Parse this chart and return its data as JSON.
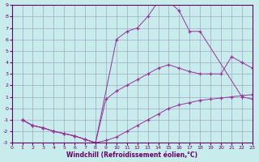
{
  "xlabel": "Windchill (Refroidissement éolien,°C)",
  "bg_color": "#c8ecec",
  "grid_color": "#9999bb",
  "line_color": "#993399",
  "xlim": [
    0,
    23
  ],
  "ylim": [
    -3,
    9
  ],
  "xticks": [
    0,
    1,
    2,
    3,
    4,
    5,
    6,
    7,
    8,
    9,
    10,
    11,
    12,
    13,
    14,
    15,
    16,
    17,
    18,
    19,
    20,
    21,
    22,
    23
  ],
  "yticks": [
    -3,
    -2,
    -1,
    0,
    1,
    2,
    3,
    4,
    5,
    6,
    7,
    8,
    9
  ],
  "series1_x": [
    1,
    2,
    3,
    4,
    5,
    6,
    7,
    8,
    10,
    11,
    12,
    13,
    14,
    15,
    16,
    17,
    18,
    22,
    23
  ],
  "series1_y": [
    -1,
    -1.5,
    -1.7,
    -2.0,
    -2.2,
    -2.4,
    -2.7,
    -3.0,
    6.0,
    6.7,
    7.0,
    8.0,
    9.3,
    9.3,
    8.5,
    6.7,
    6.7,
    1.0,
    0.8
  ],
  "series2_x": [
    1,
    2,
    3,
    4,
    5,
    6,
    7,
    8,
    9,
    10,
    11,
    12,
    13,
    14,
    15,
    16,
    17,
    18,
    19,
    20,
    21,
    22,
    23
  ],
  "series2_y": [
    -1,
    -1.5,
    -1.7,
    -2.0,
    -2.2,
    -2.4,
    -2.7,
    -3.0,
    0.8,
    1.5,
    2.0,
    2.5,
    3.0,
    3.5,
    3.8,
    3.5,
    3.2,
    3.0,
    3.0,
    3.0,
    4.5,
    4.0,
    3.5
  ],
  "series3_x": [
    1,
    2,
    3,
    4,
    5,
    6,
    7,
    8,
    9,
    10,
    11,
    12,
    13,
    14,
    15,
    16,
    17,
    18,
    19,
    20,
    21,
    22,
    23
  ],
  "series3_y": [
    -1,
    -1.5,
    -1.7,
    -2.0,
    -2.2,
    -2.4,
    -2.7,
    -3.0,
    -2.8,
    -2.5,
    -2.0,
    -1.5,
    -1.0,
    -0.5,
    0.0,
    0.3,
    0.5,
    0.7,
    0.8,
    0.9,
    1.0,
    1.1,
    1.2
  ]
}
